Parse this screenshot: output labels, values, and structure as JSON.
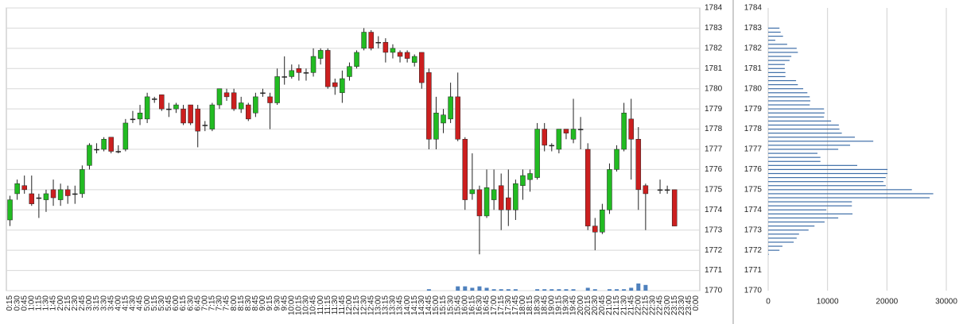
{
  "chart_data": [
    {
      "type": "candlestick",
      "categories": [
        "0:15",
        "0:30",
        "0:45",
        "1:00",
        "1:15",
        "1:30",
        "1:45",
        "2:00",
        "2:15",
        "2:30",
        "2:45",
        "3:00",
        "3:15",
        "3:30",
        "3:45",
        "4:00",
        "4:15",
        "4:30",
        "4:45",
        "5:00",
        "5:15",
        "5:30",
        "5:45",
        "6:00",
        "6:15",
        "6:30",
        "6:45",
        "7:00",
        "7:15",
        "7:30",
        "7:45",
        "8:00",
        "8:15",
        "8:30",
        "8:45",
        "9:00",
        "9:15",
        "9:30",
        "9:45",
        "10:00",
        "10:15",
        "10:30",
        "10:45",
        "11:00",
        "11:15",
        "11:30",
        "11:45",
        "12:00",
        "12:15",
        "12:30",
        "12:45",
        "13:00",
        "13:15",
        "13:30",
        "13:45",
        "14:00",
        "14:15",
        "14:30",
        "14:45",
        "15:00",
        "15:15",
        "15:30",
        "15:45",
        "16:00",
        "16:15",
        "16:30",
        "16:45",
        "17:00",
        "17:15",
        "17:30",
        "17:45",
        "18:00",
        "18:15",
        "18:30",
        "18:45",
        "19:00",
        "19:15",
        "19:30",
        "19:45",
        "20:00",
        "20:15",
        "20:30",
        "20:45",
        "21:00",
        "21:15",
        "21:30",
        "21:45",
        "22:00",
        "22:15",
        "22:30",
        "22:45",
        "23:00",
        "23:15",
        "23:30",
        "23:45",
        "0:00"
      ],
      "open": [
        1773.5,
        1774.8,
        1775.2,
        1774.8,
        1774.6,
        1774.5,
        1775,
        1774.5,
        1775,
        1774.8,
        1774.8,
        1776.2,
        1777,
        1777,
        1777.6,
        1776.9,
        1777,
        1778.5,
        1778.5,
        1778.5,
        1779.5,
        1779.7,
        1779,
        1779,
        1779,
        1779.2,
        1779,
        1778.2,
        1778,
        1779.2,
        1779.8,
        1779.8,
        1779,
        1779.2,
        1778.8,
        1779.8,
        1779.6,
        1779.3,
        1780.6,
        1780.6,
        1781,
        1780.8,
        1780.8,
        1781.5,
        1781.9,
        1780.3,
        1779.8,
        1780.6,
        1781.1,
        1782,
        1782.8,
        1782.3,
        1782.3,
        1781.8,
        1781.8,
        1781.8,
        1781.3,
        1781.8,
        1780.8,
        1777.5,
        1778.3,
        1778.5,
        1779.6,
        1777.5,
        1774.8,
        1775,
        1773.7,
        1774.5,
        1775.2,
        1774.6,
        1774,
        1775.2,
        1775.5,
        1775.6,
        1778,
        1777.2,
        1777,
        1778,
        1777.5,
        1778,
        1777,
        1773.2,
        1772.9,
        1774,
        1776,
        1777,
        1778.5,
        1777.5,
        1775.2,
        null,
        1775,
        1775,
        1775,
        null,
        null,
        null
      ],
      "high": [
        1774.7,
        1775.5,
        1775.7,
        1775.7,
        1774.8,
        1775,
        1775.5,
        1775.3,
        1775.2,
        1775.2,
        1776.2,
        1777.3,
        1777.3,
        1777.6,
        1777.6,
        1777.2,
        1778.5,
        1778.9,
        1779.2,
        1779.8,
        1779.6,
        1779.7,
        1779.3,
        1779.3,
        1779.2,
        1779.2,
        1779.2,
        1778.4,
        1779.3,
        1780,
        1780,
        1780,
        1779.6,
        1779.3,
        1779.8,
        1780,
        1779.8,
        1781,
        1781.6,
        1781.2,
        1781.2,
        1781,
        1782,
        1782,
        1782,
        1780.5,
        1780.9,
        1781.3,
        1781.9,
        1783,
        1782.9,
        1782.6,
        1782.5,
        1782.2,
        1781.9,
        1781.9,
        1781.7,
        1781.8,
        1781,
        1779.6,
        1779,
        1780.3,
        1780.8,
        1777.6,
        1776.8,
        1775.2,
        1776,
        1776,
        1775.8,
        1776,
        1775.5,
        1776,
        1776,
        1778.3,
        1778.3,
        1777.3,
        1778,
        1778,
        1779.5,
        1778.6,
        1777.3,
        1773.6,
        1774.3,
        1776.3,
        1777.2,
        1779.3,
        1779.5,
        1778.1,
        1775.3,
        null,
        1775.5,
        1775.2,
        1775,
        null,
        null,
        null
      ],
      "low": [
        1773.2,
        1774.5,
        1774.8,
        1774.2,
        1773.6,
        1773.9,
        1774.2,
        1774.2,
        1774.3,
        1774.3,
        1774.6,
        1776,
        1776.8,
        1776.9,
        1776.8,
        1776.8,
        1776.9,
        1778.3,
        1778.2,
        1778.3,
        1779.3,
        1778.9,
        1778.6,
        1778.8,
        1778.2,
        1778.2,
        1777.1,
        1777.9,
        1777.9,
        1779,
        1779.4,
        1778.9,
        1778.8,
        1778.4,
        1778.6,
        1779.6,
        1778,
        1779.2,
        1780.2,
        1780.5,
        1780.4,
        1780.4,
        1780.6,
        1781.2,
        1780,
        1779.7,
        1779.3,
        1780.4,
        1781,
        1781.9,
        1781.9,
        1782,
        1781.3,
        1781.5,
        1781.3,
        1781.3,
        1781.1,
        1780,
        1777,
        1777,
        1777.8,
        1778.3,
        1777.4,
        1774,
        1774.5,
        1771.8,
        1773.6,
        1774,
        1773,
        1773.2,
        1773.5,
        1774.5,
        1774.9,
        1775.5,
        1776.9,
        1776.9,
        1776.8,
        1777.5,
        1777.3,
        1777,
        1773,
        1772,
        1772.8,
        1773.8,
        1775.9,
        1776.9,
        1775.5,
        1774,
        1773,
        null,
        1774.8,
        1774.8,
        1773.2,
        null,
        null,
        null
      ],
      "close": [
        1774.5,
        1775.3,
        1775,
        1774.3,
        1774.6,
        1774.8,
        1774.6,
        1775,
        1774.7,
        1774.8,
        1776,
        1777.2,
        1777,
        1777.5,
        1776.9,
        1776.9,
        1778.3,
        1778.5,
        1778.8,
        1779.6,
        1779.5,
        1779,
        1779,
        1779.2,
        1778.3,
        1778.3,
        1777.9,
        1778.2,
        1779.2,
        1780,
        1779.6,
        1779,
        1779.3,
        1778.5,
        1779.6,
        1779.8,
        1779.3,
        1780.6,
        1780.6,
        1780.9,
        1780.8,
        1780.8,
        1781.6,
        1781.9,
        1780.1,
        1780.1,
        1780.5,
        1781.1,
        1781.8,
        1782.8,
        1782,
        1782.3,
        1781.8,
        1782,
        1781.6,
        1781.5,
        1781.6,
        1780.3,
        1777.5,
        1778.8,
        1778.7,
        1779.6,
        1777.5,
        1774.5,
        1775,
        1773.7,
        1775.1,
        1775,
        1774,
        1774,
        1775.3,
        1775.7,
        1775.8,
        1778,
        1777.2,
        1777.2,
        1778,
        1777.8,
        1778,
        1778,
        1773.2,
        1772.9,
        1774,
        1776,
        1777,
        1778.8,
        1777.5,
        1775,
        1774.8,
        null,
        1775,
        1775,
        1773.2,
        null,
        null,
        null
      ],
      "volume": [
        0,
        0,
        0,
        0,
        0,
        0,
        0,
        0,
        0,
        0,
        0,
        0,
        0,
        0,
        0,
        0,
        0,
        0,
        0,
        0,
        0,
        0,
        0,
        0,
        0,
        0,
        0,
        0,
        0,
        0,
        0,
        0,
        0,
        0,
        0,
        0,
        0,
        0,
        0,
        0,
        0,
        0,
        0,
        0,
        0,
        0,
        0,
        0,
        0,
        0,
        0,
        0,
        0,
        0,
        0,
        0,
        0,
        0,
        1,
        0,
        0,
        0,
        3,
        3,
        2,
        3,
        2,
        1,
        1,
        1,
        1,
        0,
        0,
        1,
        1,
        1,
        1,
        1,
        1,
        0,
        2,
        1,
        0,
        1,
        1,
        1,
        2,
        5,
        4,
        0,
        0,
        0,
        0,
        0,
        0,
        0
      ],
      "up_color": "#22bb22",
      "down_color": "#cc1f1f",
      "volume_color": "#4f81bd",
      "ylim": [
        1770,
        1784
      ],
      "yticks": [
        1770,
        1771,
        1772,
        1773,
        1774,
        1775,
        1776,
        1777,
        1778,
        1779,
        1780,
        1781,
        1782,
        1783,
        1784
      ],
      "grid": true
    },
    {
      "type": "bar",
      "orientation": "horizontal",
      "y": [
        1783,
        1782.8,
        1782.6,
        1782.4,
        1782.2,
        1782,
        1781.8,
        1781.6,
        1781.4,
        1781.2,
        1781,
        1780.8,
        1780.6,
        1780.4,
        1780.2,
        1780,
        1779.8,
        1779.6,
        1779.4,
        1779.2,
        1779,
        1778.8,
        1778.6,
        1778.4,
        1778.2,
        1778,
        1777.8,
        1777.6,
        1777.4,
        1777.2,
        1777,
        1776.8,
        1776.6,
        1776.4,
        1776.2,
        1776,
        1775.8,
        1775.6,
        1775.4,
        1775.2,
        1775,
        1774.8,
        1774.6,
        1774.4,
        1774.2,
        1774,
        1773.8,
        1773.6,
        1773.4,
        1773.2,
        1773,
        1772.8,
        1772.6,
        1772.4,
        1772.2,
        1772,
        1771.8
      ],
      "values": [
        1900,
        2100,
        2500,
        1200,
        3200,
        4800,
        5000,
        3900,
        3600,
        2800,
        2800,
        2900,
        2900,
        4700,
        5000,
        5900,
        6600,
        7000,
        7100,
        7000,
        9400,
        9500,
        9400,
        10600,
        11900,
        12000,
        12400,
        14600,
        17700,
        13800,
        11800,
        8300,
        8800,
        8800,
        15000,
        20100,
        20100,
        19800,
        19400,
        19800,
        24200,
        27800,
        27200,
        14100,
        14100,
        9800,
        14200,
        11800,
        9500,
        7800,
        6800,
        5200,
        4800,
        4300,
        2400,
        1900,
        100
      ],
      "color": "#3e6ea8",
      "ylim": [
        1770,
        1784
      ],
      "yticks": [
        1770,
        1771,
        1772,
        1773,
        1774,
        1775,
        1776,
        1777,
        1778,
        1779,
        1780,
        1781,
        1782,
        1783,
        1784
      ],
      "xlim": [
        0,
        30000
      ],
      "xticks": [
        0,
        10000,
        20000,
        30000
      ],
      "grid": true
    }
  ]
}
